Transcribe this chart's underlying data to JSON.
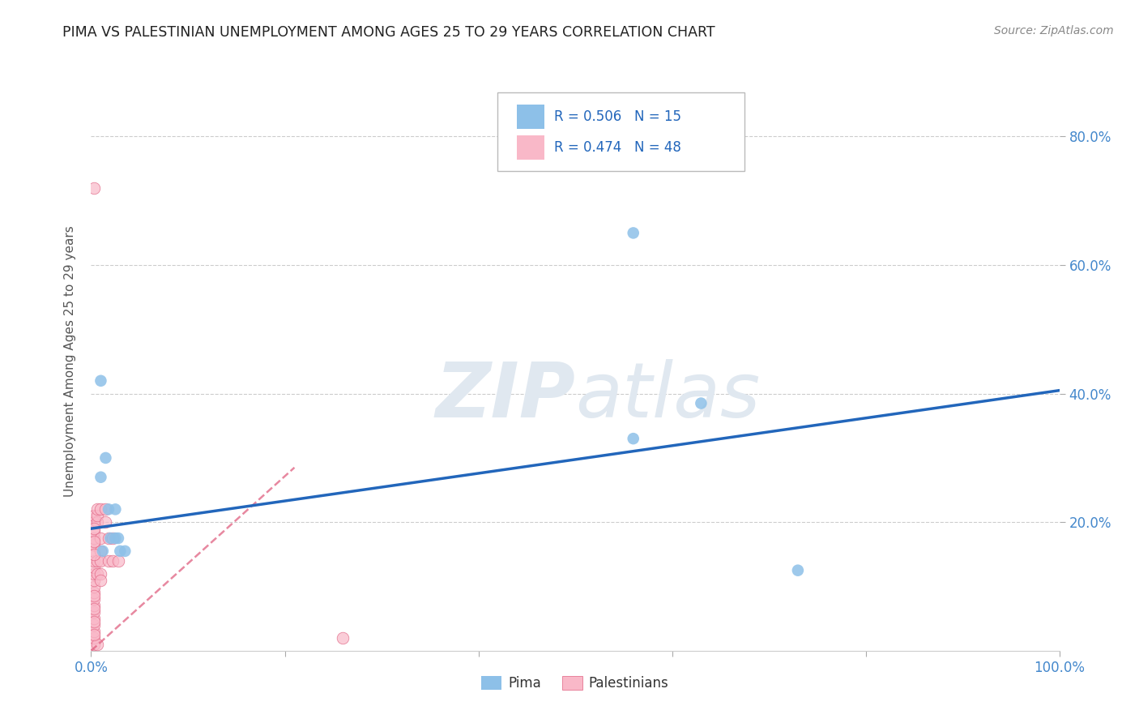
{
  "title": "PIMA VS PALESTINIAN UNEMPLOYMENT AMONG AGES 25 TO 29 YEARS CORRELATION CHART",
  "source": "Source: ZipAtlas.com",
  "ylabel": "Unemployment Among Ages 25 to 29 years",
  "xlim": [
    0.0,
    1.0
  ],
  "ylim": [
    0.0,
    0.9
  ],
  "xtick_positions": [
    0.0,
    0.2,
    0.4,
    0.6,
    0.8,
    1.0
  ],
  "xtick_labels": [
    "0.0%",
    "",
    "",
    "",
    "",
    "100.0%"
  ],
  "ytick_positions": [
    0.2,
    0.4,
    0.6,
    0.8
  ],
  "ytick_labels": [
    "20.0%",
    "40.0%",
    "60.0%",
    "80.0%"
  ],
  "pima_points": [
    [
      0.01,
      0.42
    ],
    [
      0.01,
      0.27
    ],
    [
      0.015,
      0.3
    ],
    [
      0.018,
      0.22
    ],
    [
      0.02,
      0.175
    ],
    [
      0.025,
      0.22
    ],
    [
      0.025,
      0.175
    ],
    [
      0.028,
      0.175
    ],
    [
      0.03,
      0.155
    ],
    [
      0.035,
      0.155
    ],
    [
      0.56,
      0.65
    ],
    [
      0.56,
      0.33
    ],
    [
      0.63,
      0.385
    ],
    [
      0.73,
      0.125
    ],
    [
      0.012,
      0.155
    ]
  ],
  "pima_R": 0.506,
  "pima_N": 15,
  "pima_line_x": [
    0.0,
    1.0
  ],
  "pima_line_y": [
    0.19,
    0.405
  ],
  "pima_color": "#8dc0e8",
  "pima_line_color": "#2266bb",
  "palestinian_points": [
    [
      0.003,
      0.72
    ],
    [
      0.003,
      0.01
    ],
    [
      0.003,
      0.02
    ],
    [
      0.003,
      0.03
    ],
    [
      0.003,
      0.04
    ],
    [
      0.003,
      0.05
    ],
    [
      0.003,
      0.06
    ],
    [
      0.003,
      0.07
    ],
    [
      0.003,
      0.08
    ],
    [
      0.003,
      0.09
    ],
    [
      0.003,
      0.1
    ],
    [
      0.003,
      0.11
    ],
    [
      0.003,
      0.12
    ],
    [
      0.003,
      0.13
    ],
    [
      0.003,
      0.14
    ],
    [
      0.003,
      0.155
    ],
    [
      0.003,
      0.165
    ],
    [
      0.003,
      0.175
    ],
    [
      0.003,
      0.185
    ],
    [
      0.003,
      0.2
    ],
    [
      0.003,
      0.21
    ],
    [
      0.006,
      0.2
    ],
    [
      0.006,
      0.21
    ],
    [
      0.006,
      0.22
    ],
    [
      0.006,
      0.14
    ],
    [
      0.006,
      0.12
    ],
    [
      0.006,
      0.01
    ],
    [
      0.01,
      0.22
    ],
    [
      0.01,
      0.175
    ],
    [
      0.01,
      0.155
    ],
    [
      0.01,
      0.14
    ],
    [
      0.01,
      0.12
    ],
    [
      0.01,
      0.11
    ],
    [
      0.015,
      0.2
    ],
    [
      0.015,
      0.22
    ],
    [
      0.018,
      0.175
    ],
    [
      0.018,
      0.14
    ],
    [
      0.022,
      0.14
    ],
    [
      0.022,
      0.175
    ],
    [
      0.028,
      0.14
    ],
    [
      0.003,
      0.15
    ],
    [
      0.003,
      0.17
    ],
    [
      0.003,
      0.19
    ],
    [
      0.003,
      0.025
    ],
    [
      0.003,
      0.045
    ],
    [
      0.003,
      0.065
    ],
    [
      0.26,
      0.02
    ],
    [
      0.003,
      0.085
    ]
  ],
  "palestinian_R": 0.474,
  "palestinian_N": 48,
  "palestinian_line_x": [
    0.0,
    0.21
  ],
  "palestinian_line_y": [
    0.0,
    0.285
  ],
  "palestinian_color": "#f9b8c8",
  "palestinian_line_color": "#e06080",
  "background_color": "#ffffff",
  "grid_color": "#cccccc",
  "watermark_zip": "ZIP",
  "watermark_atlas": "atlas",
  "watermark_color": "#e0e8f0"
}
